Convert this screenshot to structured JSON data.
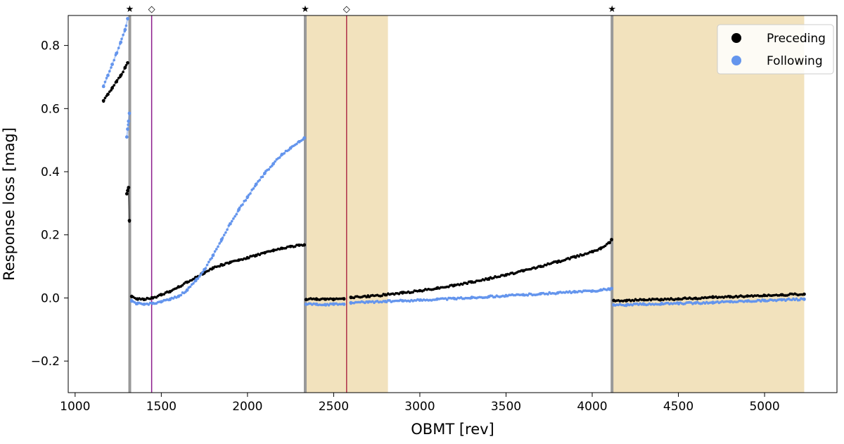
{
  "chart_data": {
    "type": "scatter",
    "title": "",
    "xlabel": "OBMT [rev]",
    "ylabel": "Response loss [mag]",
    "xlim": [
      960,
      5420
    ],
    "ylim": [
      -0.3,
      0.895
    ],
    "xticks": [
      1000,
      1500,
      2000,
      2500,
      3000,
      3500,
      4000,
      4500,
      5000
    ],
    "yticks": [
      -0.2,
      0.0,
      0.2,
      0.4,
      0.6,
      0.8
    ],
    "ytick_labels": [
      "−0.2",
      "0.0",
      "0.2",
      "0.4",
      "0.6",
      "0.8"
    ],
    "grid": false,
    "legend_position": "top-right",
    "shaded_regions": [
      {
        "x0": 2338,
        "x1": 2815,
        "color": "#f2e2bd"
      },
      {
        "x0": 4118,
        "x1": 5230,
        "color": "#f2e2bd"
      }
    ],
    "event_lines": [
      {
        "x": 1317,
        "type": "decontamination",
        "marker": "★",
        "color": "#999999"
      },
      {
        "x": 1444,
        "type": "refocus",
        "marker": "◇",
        "color": "#8b1a8b"
      },
      {
        "x": 2335,
        "type": "decontamination",
        "marker": "★",
        "color": "#999999"
      },
      {
        "x": 2575,
        "type": "refocus",
        "marker": "◇",
        "color": "#b03048"
      },
      {
        "x": 4115,
        "type": "decontamination",
        "marker": "★",
        "color": "#999999"
      }
    ],
    "series": [
      {
        "name": "Preceding",
        "color": "#000000",
        "segments": [
          {
            "x": [
              1165,
              1190,
              1215,
              1240,
              1265,
              1290,
              1305
            ],
            "y": [
              0.625,
              0.645,
              0.665,
              0.685,
              0.705,
              0.73,
              0.745
            ]
          },
          {
            "x": [
              1300,
              1305,
              1310,
              1315
            ],
            "y": [
              0.33,
              0.34,
              0.35,
              0.245
            ]
          },
          {
            "x": [
              1328,
              1360,
              1400,
              1450,
              1500,
              1550,
              1600,
              1650,
              1700,
              1750,
              1800,
              1850,
              1900,
              1950,
              2000,
              2050,
              2100,
              2150,
              2200,
              2250,
              2300,
              2330
            ],
            "y": [
              0.005,
              -0.003,
              -0.005,
              0.0,
              0.01,
              0.02,
              0.035,
              0.05,
              0.065,
              0.08,
              0.095,
              0.105,
              0.113,
              0.12,
              0.127,
              0.135,
              0.143,
              0.15,
              0.157,
              0.163,
              0.167,
              0.168
            ]
          },
          {
            "x": [
              2340,
              2400,
              2450,
              2500,
              2560
            ],
            "y": [
              -0.005,
              -0.003,
              -0.004,
              -0.004,
              -0.003
            ]
          },
          {
            "x": [
              2600,
              2700,
              2800,
              2900,
              3000,
              3100,
              3200,
              3300,
              3400,
              3500,
              3600,
              3700,
              3800,
              3900,
              4000,
              4050,
              4100,
              4112
            ],
            "y": [
              0.002,
              0.005,
              0.01,
              0.016,
              0.023,
              0.031,
              0.04,
              0.05,
              0.061,
              0.073,
              0.086,
              0.1,
              0.115,
              0.13,
              0.147,
              0.158,
              0.175,
              0.185
            ]
          },
          {
            "x": [
              4125,
              4200,
              4300,
              4400,
              4500,
              4600,
              4700,
              4800,
              4900,
              5000,
              5100,
              5230
            ],
            "y": [
              -0.008,
              -0.008,
              -0.006,
              -0.005,
              -0.003,
              -0.001,
              0.002,
              0.004,
              0.006,
              0.008,
              0.01,
              0.012
            ]
          }
        ]
      },
      {
        "name": "Following",
        "color": "#6495ed",
        "segments": [
          {
            "x": [
              1165,
              1190,
              1215,
              1240,
              1265,
              1290,
              1305
            ],
            "y": [
              0.67,
              0.705,
              0.74,
              0.775,
              0.81,
              0.85,
              0.885
            ]
          },
          {
            "x": [
              1300,
              1305,
              1310,
              1315
            ],
            "y": [
              0.51,
              0.535,
              0.56,
              0.585
            ]
          },
          {
            "x": [
              1328,
              1360,
              1400,
              1450,
              1500,
              1550,
              1600,
              1650,
              1700,
              1750,
              1800,
              1850,
              1900,
              1950,
              2000,
              2050,
              2100,
              2150,
              2200,
              2250,
              2300,
              2330
            ],
            "y": [
              -0.01,
              -0.018,
              -0.02,
              -0.017,
              -0.012,
              -0.005,
              0.005,
              0.025,
              0.055,
              0.09,
              0.135,
              0.185,
              0.235,
              0.28,
              0.32,
              0.36,
              0.395,
              0.425,
              0.455,
              0.475,
              0.495,
              0.507
            ]
          },
          {
            "x": [
              2340,
              2400,
              2450,
              2500,
              2560
            ],
            "y": [
              -0.02,
              -0.02,
              -0.021,
              -0.02,
              -0.02
            ]
          },
          {
            "x": [
              2600,
              2700,
              2800,
              2900,
              3000,
              3100,
              3200,
              3300,
              3400,
              3500,
              3600,
              3700,
              3800,
              3900,
              4000,
              4050,
              4100,
              4112
            ],
            "y": [
              -0.015,
              -0.013,
              -0.011,
              -0.009,
              -0.007,
              -0.004,
              -0.002,
              0.001,
              0.004,
              0.007,
              0.01,
              0.013,
              0.016,
              0.019,
              0.022,
              0.025,
              0.028,
              0.03
            ]
          },
          {
            "x": [
              4125,
              4200,
              4300,
              4400,
              4500,
              4600,
              4700,
              4800,
              4900,
              5000,
              5100,
              5230
            ],
            "y": [
              -0.022,
              -0.022,
              -0.02,
              -0.019,
              -0.017,
              -0.016,
              -0.014,
              -0.012,
              -0.01,
              -0.008,
              -0.006,
              -0.004
            ]
          }
        ]
      }
    ]
  }
}
